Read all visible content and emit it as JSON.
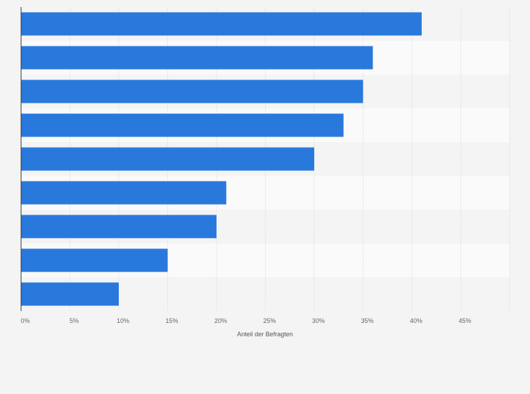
{
  "chart_data": {
    "type": "bar",
    "orientation": "horizontal",
    "categories": [
      "",
      "",
      "",
      "",
      "",
      "",
      "",
      "",
      ""
    ],
    "values": [
      41,
      36,
      35,
      33,
      30,
      21,
      20,
      15,
      10
    ],
    "xlabel": "Anteil der Befragten",
    "ylabel": "",
    "xlim": [
      0,
      50
    ],
    "xticks": [
      0,
      5,
      10,
      15,
      20,
      25,
      30,
      35,
      40,
      45
    ],
    "tick_labels": [
      "0%",
      "5%",
      "10%",
      "15%",
      "20%",
      "25%",
      "30%",
      "35%",
      "40%",
      "45%"
    ],
    "grid": true,
    "legend": "none",
    "bar_color": "#2979dd"
  }
}
